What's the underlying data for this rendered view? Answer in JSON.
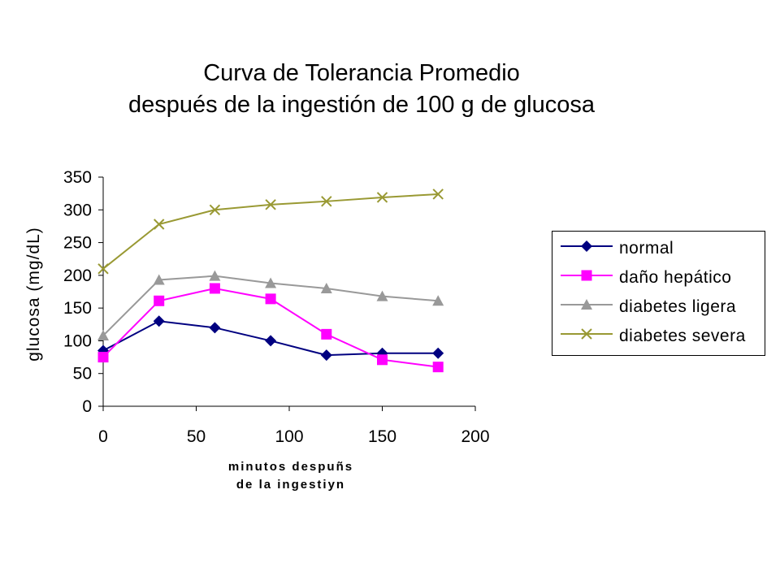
{
  "chart_data": {
    "type": "line",
    "title": "Curva de Tolerancia Promedio",
    "subtitle": "después de la ingestión de 100 g de glucosa",
    "xlabel_line1": "minutos despuñs",
    "xlabel_line2": "de la ingestiyn",
    "ylabel": "glucosa (mg/dL)",
    "xlim": [
      0,
      200
    ],
    "ylim": [
      0,
      350
    ],
    "xticks": [
      "0",
      "50",
      "100",
      "150",
      "200"
    ],
    "yticks": [
      "0",
      "50",
      "100",
      "150",
      "200",
      "250",
      "300",
      "350"
    ],
    "grid": false,
    "legend_position": "right",
    "series": [
      {
        "name": "normal",
        "color": "#000080",
        "marker": "diamond",
        "x": [
          0,
          30,
          60,
          90,
          120,
          150,
          180
        ],
        "values": [
          85,
          130,
          120,
          100,
          78,
          81,
          81
        ]
      },
      {
        "name": "daño hepático",
        "color": "#ff00ff",
        "marker": "square",
        "x": [
          0,
          30,
          60,
          90,
          120,
          150,
          180
        ],
        "values": [
          75,
          161,
          180,
          164,
          110,
          71,
          60
        ]
      },
      {
        "name": "diabetes ligera",
        "color": "#999999",
        "marker": "triangle",
        "x": [
          0,
          30,
          60,
          90,
          120,
          150,
          180
        ],
        "values": [
          108,
          193,
          199,
          188,
          180,
          168,
          161
        ]
      },
      {
        "name": "diabetes severa",
        "color": "#999933",
        "marker": "x",
        "x": [
          0,
          30,
          60,
          90,
          120,
          150,
          180
        ],
        "values": [
          210,
          278,
          300,
          308,
          313,
          319,
          324
        ]
      }
    ]
  }
}
